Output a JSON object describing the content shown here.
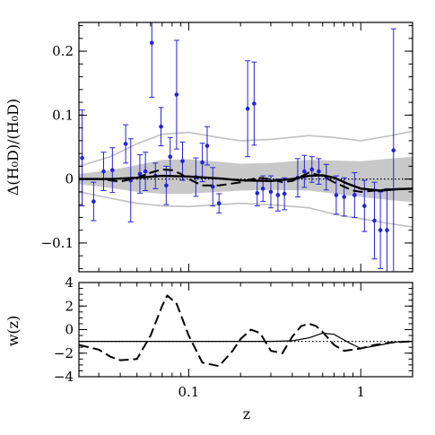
{
  "chart_data": [
    {
      "type": "scatter",
      "xlabel": "",
      "ylabel": "Δ(H₀D)/(H₀D)",
      "xscale": "log",
      "xlim": [
        0.023,
        2.0
      ],
      "ylim": [
        -0.145,
        0.245
      ],
      "yticks": [
        0.2,
        0.1,
        0,
        -0.1
      ],
      "ytick_labels": [
        "0.2",
        "0.1",
        "0",
        "−0.1"
      ],
      "reference_line": 0,
      "colors": {
        "data": "#2222dd",
        "band_1sigma": "#c8c8c8",
        "band_2sigma": "#c0c0c0",
        "curve": "#000000"
      },
      "band_1sigma": {
        "x": [
          0.023,
          0.035,
          0.05,
          0.07,
          0.1,
          0.15,
          0.2,
          0.3,
          0.5,
          0.7,
          1.0,
          1.5,
          2.0
        ],
        "lower": [
          -0.008,
          -0.014,
          -0.02,
          -0.023,
          -0.023,
          -0.02,
          -0.018,
          -0.017,
          -0.018,
          -0.023,
          -0.028,
          -0.033,
          -0.036
        ],
        "upper": [
          0.008,
          0.014,
          0.022,
          0.03,
          0.031,
          0.027,
          0.024,
          0.025,
          0.03,
          0.029,
          0.028,
          0.032,
          0.035
        ]
      },
      "band_2sigma": {
        "x": [
          0.023,
          0.035,
          0.05,
          0.07,
          0.1,
          0.15,
          0.2,
          0.3,
          0.5,
          0.7,
          1.0,
          1.5,
          2.0
        ],
        "lower": [
          -0.02,
          -0.03,
          -0.038,
          -0.042,
          -0.043,
          -0.04,
          -0.038,
          -0.04,
          -0.045,
          -0.055,
          -0.062,
          -0.07,
          -0.075
        ],
        "upper": [
          0.02,
          0.035,
          0.055,
          0.07,
          0.073,
          0.065,
          0.06,
          0.062,
          0.068,
          0.065,
          0.06,
          0.068,
          0.075
        ]
      },
      "series": [
        {
          "style": "points-with-errorbars",
          "points": [
            {
              "x": 0.024,
              "y": 0.033,
              "err": 0.075
            },
            {
              "x": 0.028,
              "y": -0.035,
              "err": 0.03
            },
            {
              "x": 0.032,
              "y": 0.012,
              "err": 0.03
            },
            {
              "x": 0.036,
              "y": 0.014,
              "err": 0.035
            },
            {
              "x": 0.043,
              "y": 0.055,
              "err": 0.03
            },
            {
              "x": 0.046,
              "y": -0.002,
              "err": 0.065
            },
            {
              "x": 0.052,
              "y": 0.008,
              "err": 0.03
            },
            {
              "x": 0.056,
              "y": 0.012,
              "err": 0.03
            },
            {
              "x": 0.061,
              "y": 0.213,
              "err": 0.085
            },
            {
              "x": 0.064,
              "y": 0.005,
              "err": 0.02
            },
            {
              "x": 0.069,
              "y": 0.082,
              "err": 0.03
            },
            {
              "x": 0.074,
              "y": -0.01,
              "err": 0.03
            },
            {
              "x": 0.078,
              "y": 0.035,
              "err": 0.03
            },
            {
              "x": 0.085,
              "y": 0.132,
              "err": 0.085
            },
            {
              "x": 0.092,
              "y": 0.028,
              "err": 0.03
            },
            {
              "x": 0.11,
              "y": 0.003,
              "err": 0.03
            },
            {
              "x": 0.12,
              "y": 0.026,
              "err": 0.03
            },
            {
              "x": 0.128,
              "y": 0.052,
              "err": 0.03
            },
            {
              "x": 0.138,
              "y": -0.012,
              "err": 0.03
            },
            {
              "x": 0.15,
              "y": -0.038,
              "err": 0.015
            },
            {
              "x": 0.22,
              "y": 0.11,
              "err": 0.075
            },
            {
              "x": 0.24,
              "y": 0.118,
              "err": 0.065
            },
            {
              "x": 0.25,
              "y": -0.022,
              "err": 0.02
            },
            {
              "x": 0.27,
              "y": -0.015,
              "err": 0.02
            },
            {
              "x": 0.3,
              "y": -0.02,
              "err": 0.025
            },
            {
              "x": 0.33,
              "y": -0.025,
              "err": 0.025
            },
            {
              "x": 0.36,
              "y": -0.023,
              "err": 0.025
            },
            {
              "x": 0.43,
              "y": 0.002,
              "err": 0.03
            },
            {
              "x": 0.47,
              "y": 0.012,
              "err": 0.025
            },
            {
              "x": 0.52,
              "y": 0.015,
              "err": 0.02
            },
            {
              "x": 0.57,
              "y": 0.012,
              "err": 0.02
            },
            {
              "x": 0.63,
              "y": 0.003,
              "err": 0.02
            },
            {
              "x": 0.72,
              "y": -0.025,
              "err": 0.03
            },
            {
              "x": 0.8,
              "y": -0.028,
              "err": 0.03
            },
            {
              "x": 0.92,
              "y": -0.025,
              "err": 0.035
            },
            {
              "x": 1.05,
              "y": -0.042,
              "err": 0.04
            },
            {
              "x": 1.2,
              "y": -0.065,
              "err": 0.06
            },
            {
              "x": 1.3,
              "y": -0.08,
              "err": 0.06
            },
            {
              "x": 1.42,
              "y": -0.08,
              "err": 0.065
            },
            {
              "x": 1.55,
              "y": 0.045,
              "err": 0.19
            }
          ]
        },
        {
          "style": "solid",
          "x": [
            0.023,
            0.035,
            0.05,
            0.07,
            0.1,
            0.15,
            0.2,
            0.3,
            0.4,
            0.5,
            0.6,
            0.7,
            0.85,
            1.0,
            1.3,
            1.6,
            2.0
          ],
          "y": [
            0.0,
            0.0,
            0.002,
            0.005,
            0.004,
            0.001,
            -0.002,
            -0.003,
            0.0,
            0.005,
            0.006,
            0.002,
            -0.008,
            -0.015,
            -0.018,
            -0.016,
            -0.015
          ]
        },
        {
          "style": "dashed",
          "x": [
            0.023,
            0.03,
            0.04,
            0.05,
            0.06,
            0.07,
            0.08,
            0.09,
            0.1,
            0.12,
            0.15,
            0.2,
            0.25,
            0.3,
            0.35,
            0.4,
            0.45,
            0.5,
            0.6,
            0.7,
            0.8,
            0.9,
            1.0,
            1.2,
            1.5,
            2.0
          ],
          "y": [
            0.0,
            0.0,
            -0.004,
            0.002,
            0.01,
            0.015,
            0.014,
            0.008,
            0.0,
            -0.01,
            -0.01,
            -0.005,
            0.002,
            0.0,
            -0.005,
            -0.003,
            0.004,
            0.01,
            0.005,
            -0.005,
            -0.012,
            -0.018,
            -0.02,
            -0.018,
            -0.016,
            -0.015
          ]
        }
      ]
    },
    {
      "type": "line",
      "xlabel": "z",
      "ylabel": "w(z)",
      "xscale": "log",
      "xlim": [
        0.023,
        2.0
      ],
      "ylim": [
        -4,
        4
      ],
      "yticks": [
        4,
        2,
        0,
        -2,
        -4
      ],
      "ytick_labels": [
        "4",
        "2",
        "0",
        "−2",
        "−4"
      ],
      "xticks": [
        0.1,
        1
      ],
      "xtick_labels": [
        "0.1",
        "1"
      ],
      "reference_line": -1,
      "series": [
        {
          "style": "solid",
          "x": [
            0.023,
            0.05,
            0.1,
            0.2,
            0.3,
            0.4,
            0.5,
            0.6,
            0.7,
            0.85,
            1.0,
            1.3,
            1.6,
            2.0
          ],
          "y": [
            -1.0,
            -1.0,
            -1.0,
            -1.0,
            -1.0,
            -0.95,
            -0.7,
            -0.3,
            -0.4,
            -1.1,
            -1.6,
            -1.3,
            -1.05,
            -1.0
          ]
        },
        {
          "style": "dashed",
          "x": [
            0.023,
            0.03,
            0.035,
            0.04,
            0.05,
            0.06,
            0.07,
            0.075,
            0.085,
            0.1,
            0.12,
            0.15,
            0.18,
            0.2,
            0.23,
            0.26,
            0.3,
            0.35,
            0.4,
            0.45,
            0.5,
            0.55,
            0.6,
            0.7,
            0.8,
            0.9,
            1.0,
            1.2,
            1.5,
            2.0
          ],
          "y": [
            -1.3,
            -1.7,
            -2.3,
            -2.6,
            -2.5,
            -0.5,
            2.0,
            2.9,
            2.2,
            -0.5,
            -2.8,
            -3.1,
            -1.8,
            -0.8,
            0.0,
            -0.3,
            -1.8,
            -2.0,
            -0.6,
            0.3,
            0.5,
            0.3,
            -0.2,
            -1.3,
            -1.8,
            -1.7,
            -1.6,
            -1.3,
            -1.1,
            -1.0
          ]
        }
      ]
    }
  ]
}
